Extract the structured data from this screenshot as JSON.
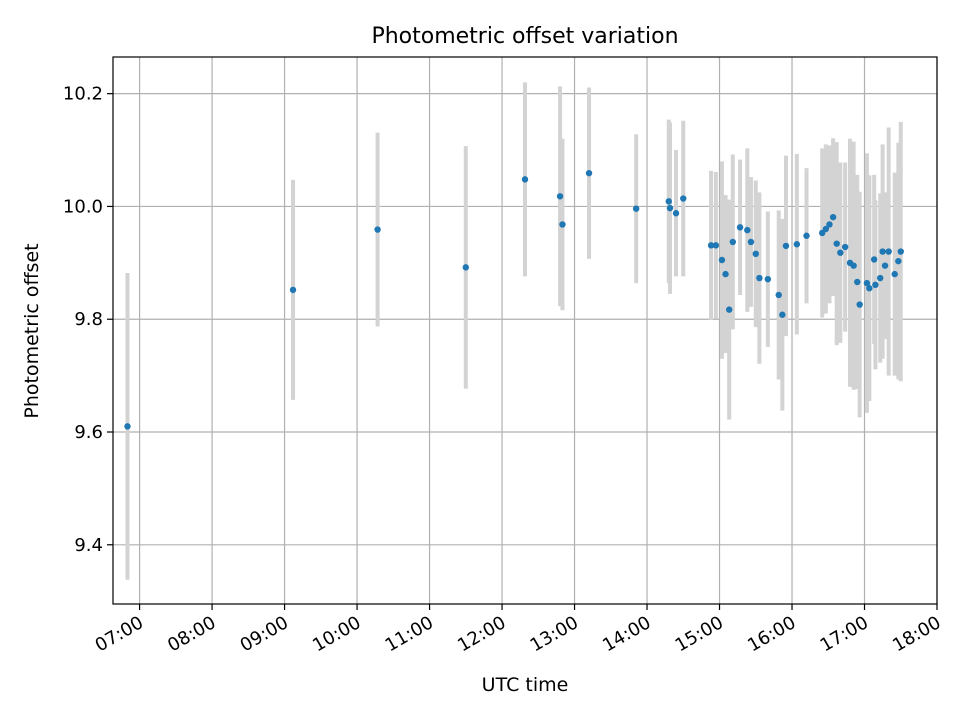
{
  "chart_data": {
    "type": "scatter",
    "title": "Photometric offset variation",
    "xlabel": "UTC time",
    "ylabel": "Photometric offset",
    "x_is_time": true,
    "xlim": [
      "06:38",
      "18:00"
    ],
    "ylim": [
      9.295,
      10.265
    ],
    "xticks": [
      "07:00",
      "08:00",
      "09:00",
      "10:00",
      "11:00",
      "12:00",
      "13:00",
      "14:00",
      "15:00",
      "16:00",
      "17:00",
      "18:00"
    ],
    "yticks": [
      "9.4",
      "9.6",
      "9.8",
      "10.0",
      "10.2"
    ],
    "grid": true,
    "marker_color": "#1f77b4",
    "errorbar_color": "#d3d3d3",
    "series": [
      {
        "x": [
          "06:50",
          "09:07",
          "10:17",
          "11:30",
          "12:19",
          "12:48",
          "12:50",
          "13:12",
          "13:51",
          "14:18",
          "14:19",
          "14:24",
          "14:30",
          "14:53",
          "14:57",
          "15:02",
          "15:05",
          "15:08",
          "15:11",
          "15:17",
          "15:23",
          "15:26",
          "15:30",
          "15:33",
          "15:40",
          "15:49",
          "15:52",
          "15:55",
          "16:04",
          "16:12",
          "16:25",
          "16:28",
          "16:31",
          "16:34",
          "16:37",
          "16:40",
          "16:44",
          "16:48",
          "16:51",
          "16:54",
          "16:56",
          "17:02",
          "17:04",
          "17:08",
          "17:09",
          "17:13",
          "17:15",
          "17:17",
          "17:20",
          "17:25",
          "17:28",
          "17:30"
        ],
        "y": [
          9.61,
          9.852,
          9.959,
          9.892,
          10.048,
          10.018,
          9.968,
          10.059,
          9.996,
          10.009,
          9.997,
          9.988,
          10.014,
          9.931,
          9.931,
          9.905,
          9.88,
          9.817,
          9.937,
          9.963,
          9.958,
          9.937,
          9.916,
          9.873,
          9.871,
          9.843,
          9.808,
          9.93,
          9.933,
          9.948,
          9.953,
          9.96,
          9.968,
          9.981,
          9.934,
          9.918,
          9.928,
          9.9,
          9.895,
          9.866,
          9.826,
          9.864,
          9.855,
          9.906,
          9.861,
          9.873,
          9.92,
          9.895,
          9.92,
          9.88,
          9.903,
          9.92
        ],
        "yerr": [
          0.272,
          0.195,
          0.172,
          0.215,
          0.172,
          0.195,
          0.152,
          0.152,
          0.132,
          0.145,
          0.152,
          0.112,
          0.138,
          0.132,
          0.13,
          0.175,
          0.14,
          0.195,
          0.155,
          0.12,
          0.145,
          0.115,
          0.13,
          0.152,
          0.12,
          0.15,
          0.17,
          0.16,
          0.16,
          0.12,
          0.15,
          0.15,
          0.14,
          0.14,
          0.18,
          0.16,
          0.15,
          0.22,
          0.22,
          0.19,
          0.2,
          0.23,
          0.2,
          0.15,
          0.15,
          0.15,
          0.19,
          0.13,
          0.22,
          0.18,
          0.21,
          0.23
        ]
      }
    ]
  }
}
